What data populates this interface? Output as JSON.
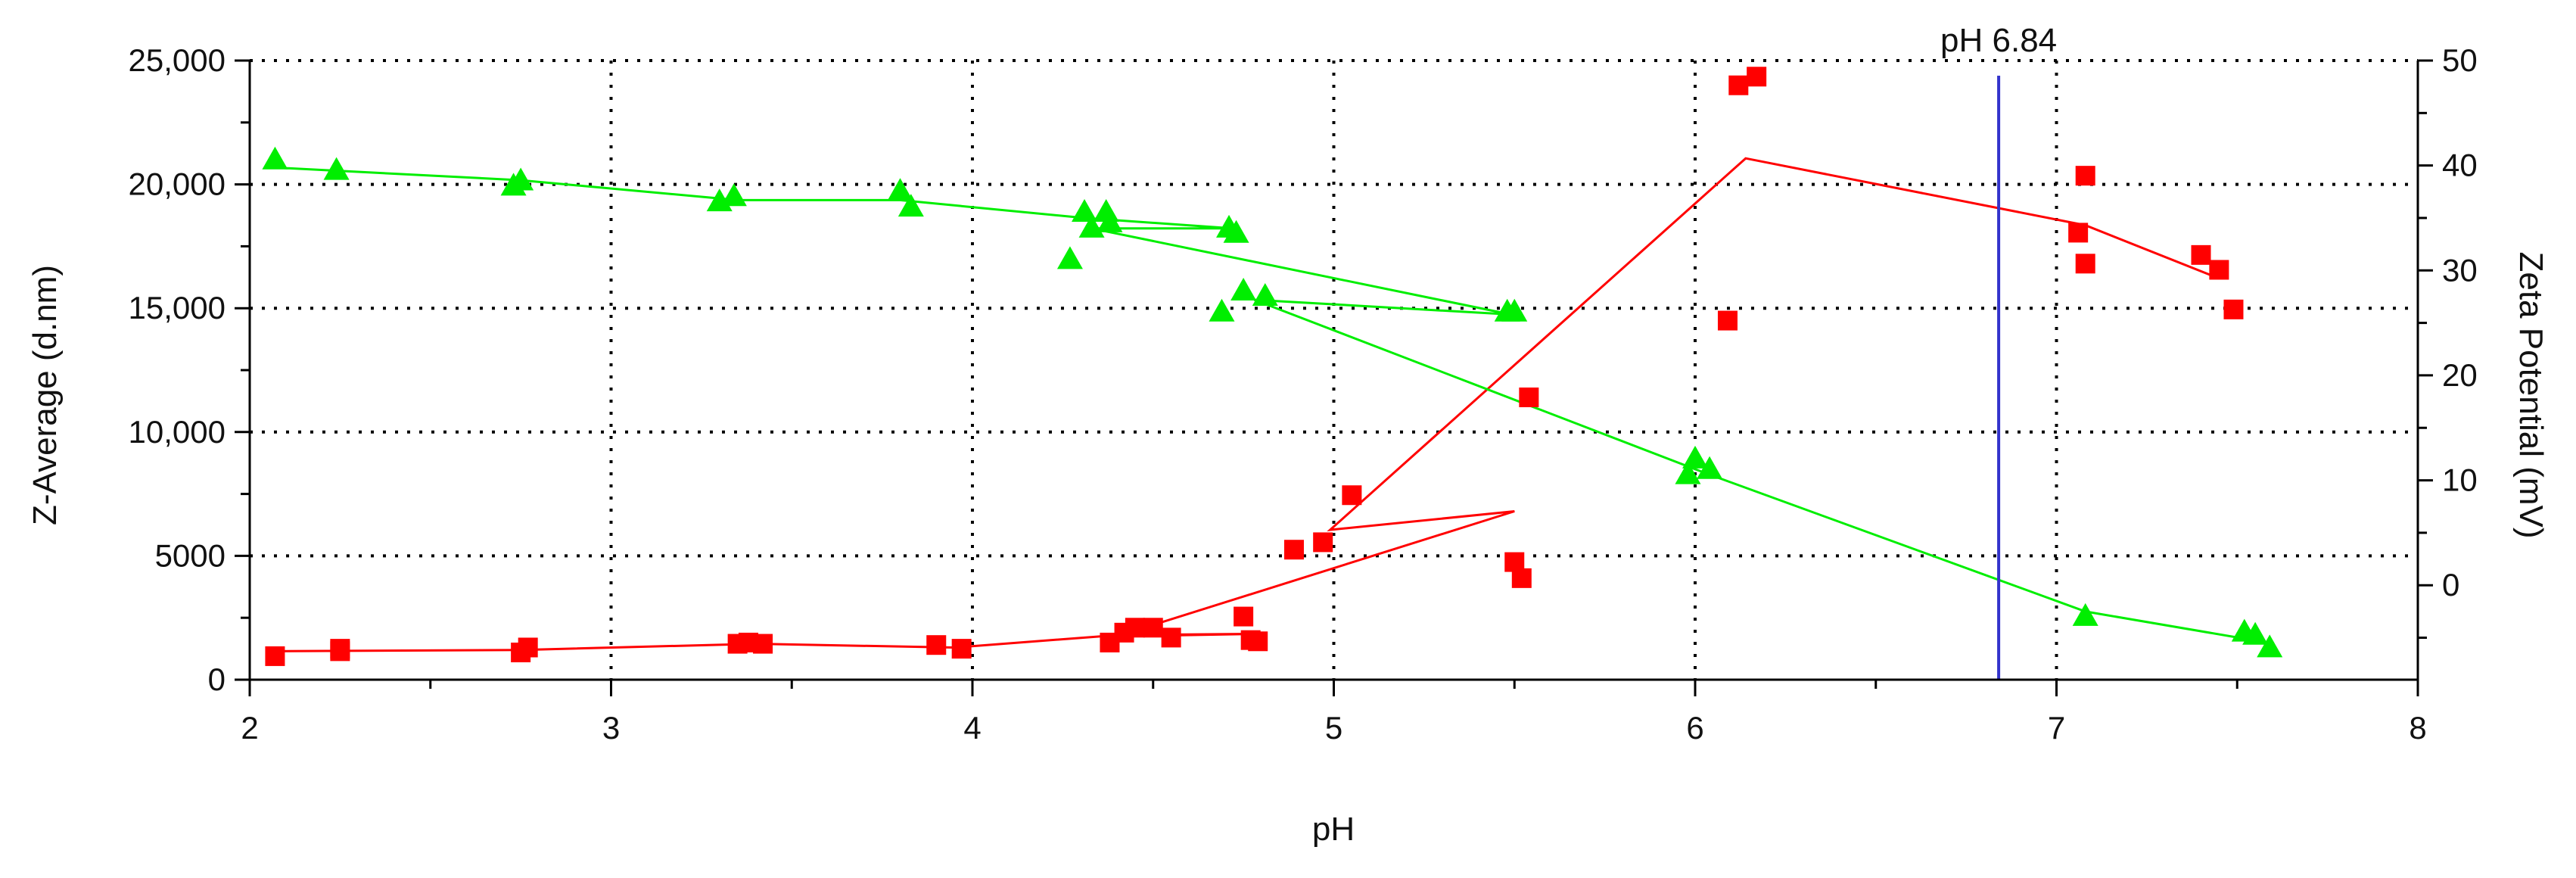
{
  "chart_data": {
    "type": "scatter",
    "xlabel": "pH",
    "ylabel": "Z-Average (d.nm)",
    "y2label": "Zeta Potential (mV)",
    "xlim": [
      2,
      8
    ],
    "ylim": [
      0,
      25000
    ],
    "y2lim": [
      -9,
      50
    ],
    "grid": true,
    "x_ticks": [
      2,
      3,
      4,
      5,
      6,
      7,
      8
    ],
    "x_tick_labels": [
      "2",
      "3",
      "4",
      "5",
      "6",
      "7",
      "8"
    ],
    "y_ticks": [
      0,
      5000,
      10000,
      15000,
      20000,
      25000
    ],
    "y_tick_labels": [
      "0",
      "5000",
      "10,000",
      "15,000",
      "20,000",
      "25,000"
    ],
    "y2_ticks": [
      0,
      10,
      20,
      30,
      40,
      50
    ],
    "y2_tick_labels": [
      "0",
      "10",
      "20",
      "30",
      "40",
      "50"
    ],
    "annotation": {
      "label": "pH 6.84",
      "x": 6.84
    },
    "series": [
      {
        "axis": "left",
        "marker": "square",
        "color": "#ff0000",
        "points": [
          [
            2.07,
            950
          ],
          [
            2.25,
            1150
          ],
          [
            2.25,
            1250
          ],
          [
            2.75,
            1100
          ],
          [
            2.77,
            1300
          ],
          [
            3.35,
            1450
          ],
          [
            3.38,
            1500
          ],
          [
            3.42,
            1450
          ],
          [
            3.9,
            1400
          ],
          [
            3.97,
            1250
          ],
          [
            4.38,
            1500
          ],
          [
            4.42,
            1900
          ],
          [
            4.45,
            2100
          ],
          [
            4.5,
            2100
          ],
          [
            4.55,
            1700
          ],
          [
            4.75,
            2550
          ],
          [
            4.77,
            1600
          ],
          [
            4.79,
            1550
          ],
          [
            4.89,
            5250
          ],
          [
            4.97,
            5550
          ],
          [
            5.05,
            7450
          ],
          [
            5.5,
            4750
          ],
          [
            5.52,
            4100
          ],
          [
            5.54,
            11400
          ],
          [
            6.09,
            14500
          ],
          [
            6.12,
            24000
          ],
          [
            6.17,
            24350
          ],
          [
            7.06,
            18050
          ],
          [
            7.08,
            16800
          ],
          [
            7.08,
            20350
          ],
          [
            7.4,
            17150
          ],
          [
            7.45,
            16550
          ],
          [
            7.49,
            14950
          ]
        ],
        "fit_line": [
          [
            2.07,
            1150
          ],
          [
            2.75,
            1200
          ],
          [
            3.4,
            1450
          ],
          [
            3.95,
            1300
          ],
          [
            4.4,
            1800
          ],
          [
            4.78,
            1850
          ],
          [
            4.4,
            1750
          ],
          [
            5.5,
            6800
          ],
          [
            4.99,
            6050
          ],
          [
            6.14,
            21050
          ],
          [
            7.08,
            18350
          ],
          [
            7.45,
            16200
          ]
        ]
      },
      {
        "axis": "right",
        "marker": "triangle",
        "color": "#00ee00",
        "points": [
          [
            2.07,
            40.5
          ],
          [
            2.24,
            39.5
          ],
          [
            2.73,
            38
          ],
          [
            2.75,
            38.5
          ],
          [
            3.3,
            36.5
          ],
          [
            3.34,
            37
          ],
          [
            3.8,
            37.5
          ],
          [
            3.83,
            36
          ],
          [
            4.27,
            31
          ],
          [
            4.31,
            35.5
          ],
          [
            4.33,
            34
          ],
          [
            4.37,
            35.5
          ],
          [
            4.38,
            34.5
          ],
          [
            4.69,
            26
          ],
          [
            4.71,
            34
          ],
          [
            4.73,
            33.5
          ],
          [
            4.75,
            28
          ],
          [
            4.81,
            27.5
          ],
          [
            5.48,
            26
          ],
          [
            5.5,
            26
          ],
          [
            5.98,
            10.5
          ],
          [
            6.0,
            12
          ],
          [
            6.04,
            11
          ],
          [
            7.08,
            -3
          ],
          [
            7.52,
            -4.5
          ],
          [
            7.55,
            -4.8
          ],
          [
            7.59,
            -6
          ]
        ],
        "fit_line": [
          [
            2.07,
            39.8
          ],
          [
            2.75,
            38.6
          ],
          [
            3.35,
            36.7
          ],
          [
            3.8,
            36.7
          ],
          [
            4.31,
            35
          ],
          [
            4.72,
            34
          ],
          [
            4.33,
            34
          ],
          [
            5.49,
            25.8
          ],
          [
            4.78,
            27.2
          ],
          [
            6.02,
            10.8
          ],
          [
            7.08,
            -2.5
          ],
          [
            7.59,
            -5.5
          ]
        ]
      }
    ]
  }
}
